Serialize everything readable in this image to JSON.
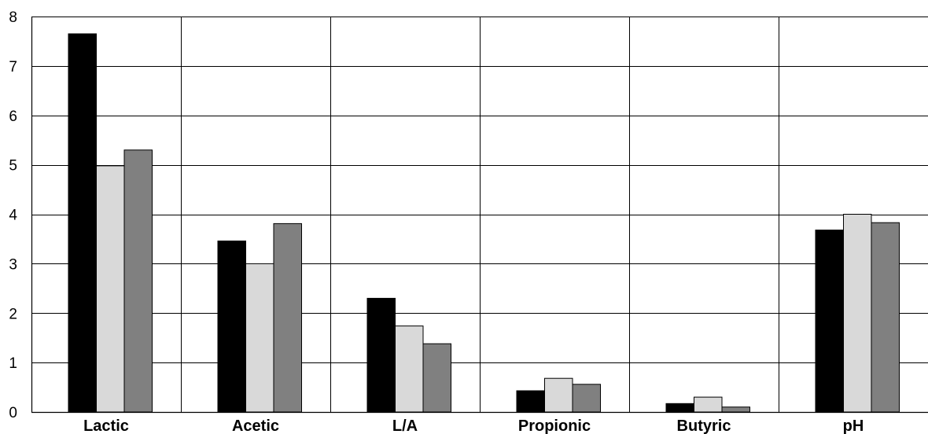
{
  "chart_data": {
    "type": "bar",
    "title": "",
    "xlabel": "",
    "ylabel": "",
    "categories": [
      "Lactic",
      "Acetic",
      "L/A",
      "Propionic",
      "Butyric",
      "pH"
    ],
    "series": [
      {
        "values": [
          7.65,
          3.46,
          2.3,
          0.43,
          0.17,
          3.68
        ],
        "color": "#000000"
      },
      {
        "values": [
          4.98,
          3.0,
          1.74,
          0.68,
          0.3,
          4.0
        ],
        "color": "#d9d9d9"
      },
      {
        "values": [
          5.3,
          3.81,
          1.38,
          0.56,
          0.1,
          3.83
        ],
        "color": "#808080"
      }
    ],
    "ylim": [
      0,
      8
    ],
    "yticks": [
      "0",
      "1",
      "2",
      "3",
      "4",
      "5",
      "6",
      "7",
      "8"
    ],
    "grid": true,
    "legend": "none"
  }
}
